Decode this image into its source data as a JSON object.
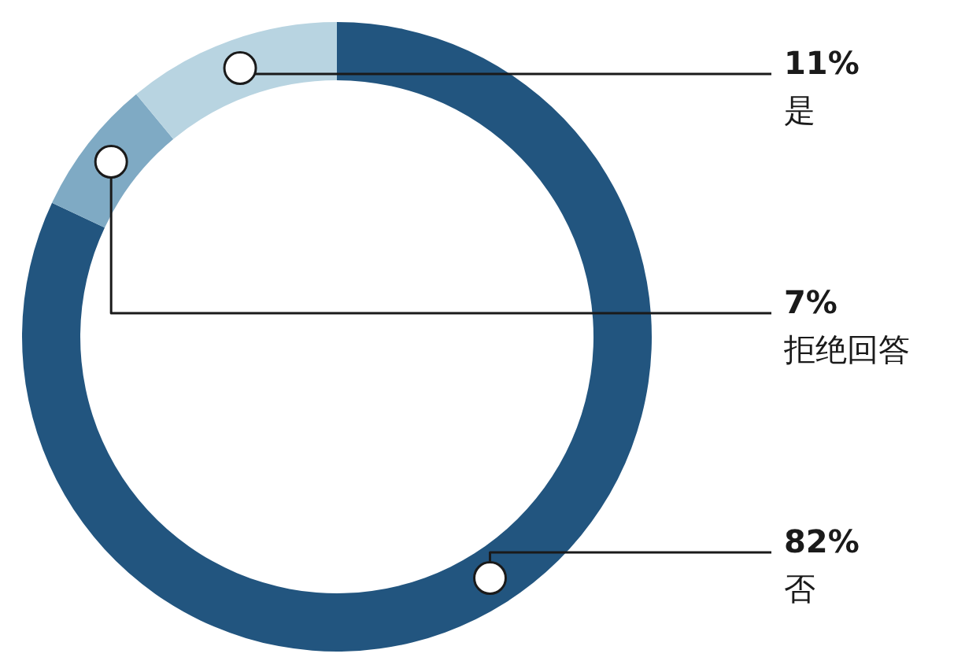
{
  "chart_data": {
    "type": "donut",
    "categories": [
      "否",
      "拒绝回答",
      "是"
    ],
    "values": [
      82,
      7,
      11
    ],
    "value_labels": [
      "82%",
      "7%",
      "11%"
    ],
    "colors": [
      "#22557f",
      "#7faac4",
      "#b8d4e1"
    ],
    "legend": false
  }
}
